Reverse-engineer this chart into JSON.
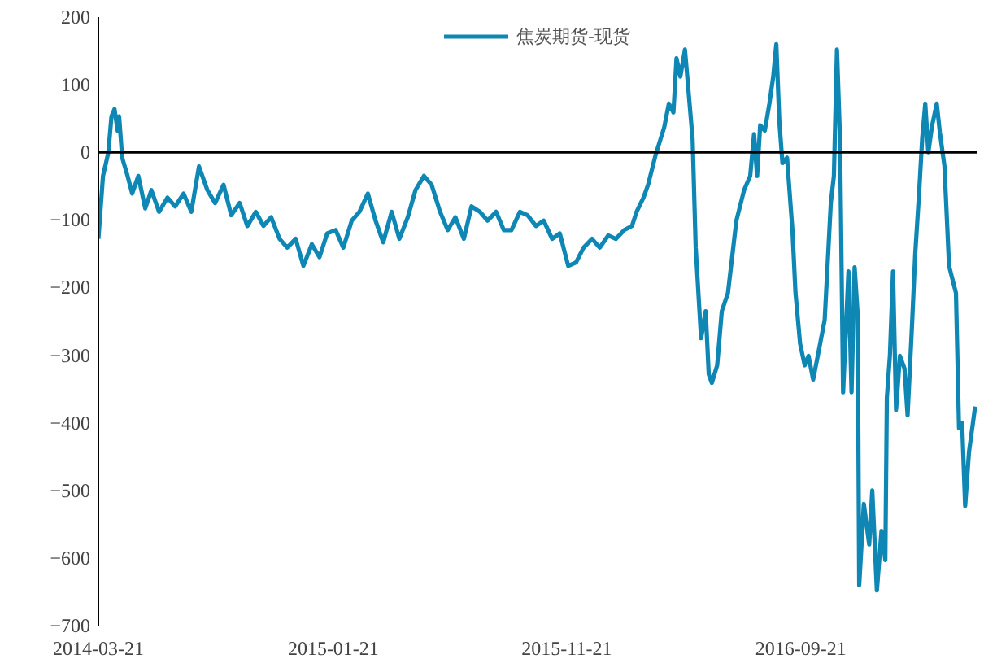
{
  "chart_data": {
    "type": "line",
    "legend": "top",
    "grid": false,
    "marker": "none",
    "line_style": "solid",
    "ref_lines": [
      {
        "axis": "y",
        "value": 0,
        "color": "#000000",
        "line_style": "solid"
      }
    ],
    "ylim": [
      -700,
      200
    ],
    "yticks": [
      -700,
      -600,
      -500,
      -400,
      -300,
      -200,
      -100,
      0,
      100,
      200
    ],
    "xlim": [
      "2014-03-21",
      "2017-05-08"
    ],
    "xticks": [
      "2014-03-21",
      "2015-01-21",
      "2015-11-21",
      "2016-09-21"
    ],
    "x": [
      "2014-03-21",
      "2014-03-27",
      "2014-04-03",
      "2014-04-07",
      "2014-04-11",
      "2014-04-15",
      "2014-04-17",
      "2014-04-21",
      "2014-04-28",
      "2014-05-04",
      "2014-05-12",
      "2014-05-21",
      "2014-05-29",
      "2014-06-08",
      "2014-06-19",
      "2014-06-29",
      "2014-07-10",
      "2014-07-20",
      "2014-07-30",
      "2014-08-10",
      "2014-08-20",
      "2014-08-31",
      "2014-09-10",
      "2014-09-21",
      "2014-10-01",
      "2014-10-12",
      "2014-10-22",
      "2014-11-01",
      "2014-11-12",
      "2014-11-22",
      "2014-12-03",
      "2014-12-13",
      "2014-12-24",
      "2015-01-03",
      "2015-01-13",
      "2015-01-24",
      "2015-02-03",
      "2015-02-14",
      "2015-02-24",
      "2015-03-07",
      "2015-03-17",
      "2015-03-27",
      "2015-04-07",
      "2015-04-17",
      "2015-04-28",
      "2015-05-08",
      "2015-05-19",
      "2015-05-29",
      "2015-06-09",
      "2015-06-19",
      "2015-06-29",
      "2015-07-10",
      "2015-07-20",
      "2015-07-31",
      "2015-08-10",
      "2015-08-21",
      "2015-08-31",
      "2015-09-10",
      "2015-09-21",
      "2015-10-01",
      "2015-10-12",
      "2015-10-22",
      "2015-11-02",
      "2015-11-12",
      "2015-11-23",
      "2015-12-03",
      "2015-12-13",
      "2015-12-24",
      "2016-01-03",
      "2016-01-14",
      "2016-01-24",
      "2016-02-04",
      "2016-02-14",
      "2016-02-20",
      "2016-02-29",
      "2016-03-06",
      "2016-03-16",
      "2016-03-27",
      "2016-04-02",
      "2016-04-08",
      "2016-04-12",
      "2016-04-17",
      "2016-04-23",
      "2016-04-27",
      "2016-05-03",
      "2016-05-07",
      "2016-05-14",
      "2016-05-20",
      "2016-05-24",
      "2016-05-28",
      "2016-06-04",
      "2016-06-10",
      "2016-06-18",
      "2016-06-29",
      "2016-07-09",
      "2016-07-17",
      "2016-07-22",
      "2016-07-26",
      "2016-07-30",
      "2016-08-05",
      "2016-08-11",
      "2016-08-16",
      "2016-08-20",
      "2016-08-24",
      "2016-08-28",
      "2016-09-03",
      "2016-09-10",
      "2016-09-14",
      "2016-09-20",
      "2016-09-26",
      "2016-10-01",
      "2016-10-07",
      "2016-10-13",
      "2016-10-22",
      "2016-10-30",
      "2016-11-03",
      "2016-11-07",
      "2016-11-11",
      "2016-11-15",
      "2016-11-22",
      "2016-11-26",
      "2016-11-30",
      "2016-12-04",
      "2016-12-06",
      "2016-12-12",
      "2016-12-19",
      "2016-12-23",
      "2016-12-29",
      "2017-01-04",
      "2017-01-09",
      "2017-01-11",
      "2017-01-15",
      "2017-01-19",
      "2017-01-23",
      "2017-01-28",
      "2017-02-03",
      "2017-02-07",
      "2017-02-13",
      "2017-02-17",
      "2017-02-22",
      "2017-02-26",
      "2017-03-02",
      "2017-03-06",
      "2017-03-11",
      "2017-03-17",
      "2017-03-21",
      "2017-03-27",
      "2017-04-02",
      "2017-04-11",
      "2017-04-15",
      "2017-04-19",
      "2017-04-23",
      "2017-04-28",
      "2017-05-06"
    ],
    "series": [
      {
        "name": "焦炭期货-现货",
        "color": "#0f87b5",
        "values": [
          -128,
          -35,
          0,
          53,
          64,
          32,
          53,
          -8,
          -35,
          -61,
          -35,
          -83,
          -56,
          -88,
          -67,
          -80,
          -61,
          -88,
          -21,
          -56,
          -75,
          -48,
          -93,
          -75,
          -109,
          -88,
          -109,
          -96,
          -128,
          -141,
          -128,
          -168,
          -136,
          -155,
          -120,
          -115,
          -141,
          -101,
          -88,
          -61,
          -101,
          -133,
          -88,
          -128,
          -96,
          -56,
          -35,
          -48,
          -88,
          -115,
          -96,
          -128,
          -80,
          -88,
          -101,
          -88,
          -115,
          -115,
          -88,
          -93,
          -109,
          -101,
          -128,
          -120,
          -168,
          -163,
          -141,
          -128,
          -141,
          -123,
          -128,
          -115,
          -109,
          -88,
          -67,
          -48,
          -3,
          37,
          72,
          59,
          139,
          112,
          152,
          99,
          19,
          -141,
          -275,
          -235,
          -328,
          -341,
          -315,
          -235,
          -208,
          -101,
          -56,
          -35,
          27,
          -35,
          40,
          32,
          72,
          112,
          160,
          45,
          -16,
          -8,
          -115,
          -208,
          -283,
          -315,
          -301,
          -336,
          -301,
          -248,
          -75,
          -35,
          152,
          19,
          -355,
          -176,
          -355,
          -170,
          -240,
          -640,
          -520,
          -580,
          -500,
          -648,
          -560,
          -603,
          -363,
          -300,
          -176,
          -381,
          -301,
          -320,
          -389,
          -250,
          -149,
          -60,
          20,
          72,
          0,
          40,
          72,
          30,
          -20,
          -168,
          -208,
          -408,
          -400,
          -523,
          -443,
          -376
        ]
      }
    ]
  }
}
